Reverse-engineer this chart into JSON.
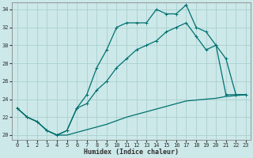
{
  "xlabel": "Humidex (Indice chaleur)",
  "xlim": [
    -0.5,
    23.5
  ],
  "ylim": [
    19.5,
    34.8
  ],
  "xticks": [
    0,
    1,
    2,
    3,
    4,
    5,
    6,
    7,
    8,
    9,
    10,
    11,
    12,
    13,
    14,
    15,
    16,
    17,
    18,
    19,
    20,
    21,
    22,
    23
  ],
  "yticks": [
    20,
    22,
    24,
    26,
    28,
    30,
    32,
    34
  ],
  "bg_color": "#cce8e8",
  "grid_color": "#aad0d0",
  "line_color": "#007070",
  "line1_x": [
    0,
    1,
    2,
    3,
    4,
    5,
    6,
    7,
    8,
    9,
    10,
    11,
    12,
    13,
    14,
    15,
    16,
    17,
    18,
    19,
    20,
    21,
    22,
    23
  ],
  "line1_y": [
    23,
    22,
    21.5,
    20.5,
    20,
    20.5,
    23,
    24.5,
    27.5,
    29.5,
    32,
    32.5,
    32.5,
    32.5,
    34,
    33.5,
    33.5,
    34.5,
    32,
    31.5,
    30,
    28.5,
    24.5,
    24.5
  ],
  "line2_x": [
    0,
    1,
    2,
    3,
    4,
    5,
    6,
    7,
    8,
    9,
    10,
    11,
    12,
    13,
    14,
    15,
    16,
    17,
    18,
    19,
    20,
    21,
    22,
    23
  ],
  "line2_y": [
    23,
    22,
    21.5,
    20.5,
    20,
    20.5,
    23,
    23.5,
    25,
    26,
    27.5,
    28.5,
    29.5,
    30,
    30.5,
    31.5,
    32,
    32.5,
    31,
    29.5,
    30,
    24.5,
    24.5,
    24.5
  ],
  "line3_x": [
    0,
    1,
    2,
    3,
    4,
    5,
    6,
    7,
    8,
    9,
    10,
    11,
    12,
    13,
    14,
    15,
    16,
    17,
    18,
    19,
    20,
    21,
    22,
    23
  ],
  "line3_y": [
    23,
    22,
    21.5,
    20.5,
    20,
    20.0,
    20.3,
    20.6,
    20.9,
    21.2,
    21.6,
    22.0,
    22.3,
    22.6,
    22.9,
    23.2,
    23.5,
    23.8,
    23.9,
    24.0,
    24.1,
    24.3,
    24.4,
    24.5
  ],
  "linewidth": 0.9,
  "markersize": 2.0,
  "tick_fontsize": 5.0,
  "label_fontsize": 6.0
}
